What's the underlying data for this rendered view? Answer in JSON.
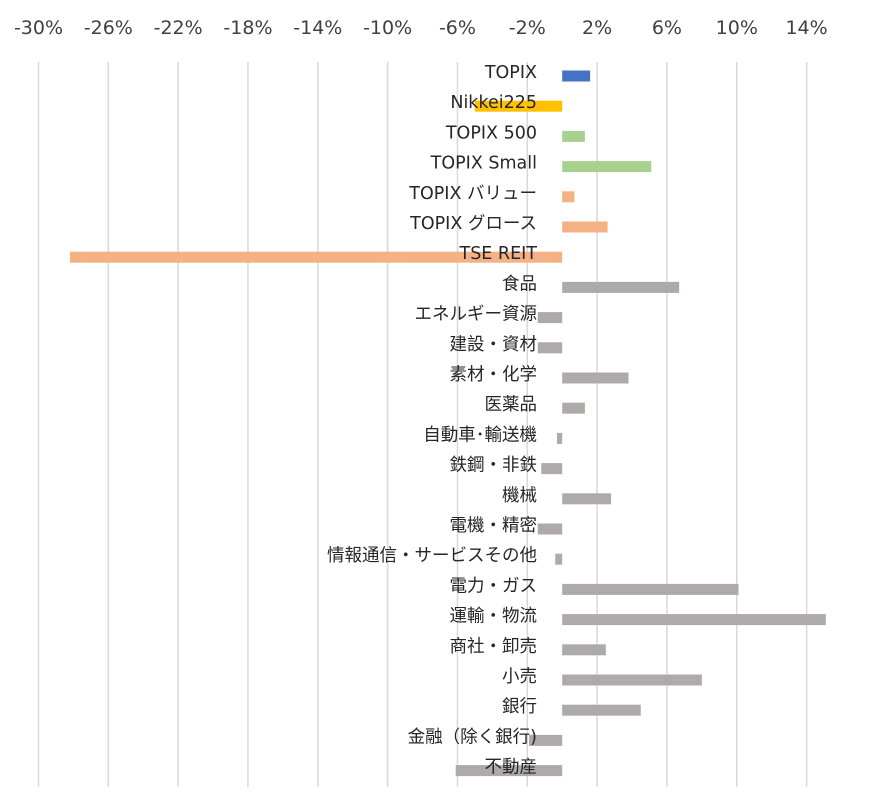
{
  "chart_data": {
    "type": "bar",
    "orientation": "horizontal",
    "title": "",
    "xlabel": "",
    "ylabel": "",
    "xlim": [
      -30,
      16
    ],
    "x_ticks": [
      -30,
      -26,
      -22,
      -18,
      -14,
      -10,
      -6,
      -2,
      2,
      6,
      10,
      14
    ],
    "x_tick_labels": [
      "-30%",
      "-26%",
      "-22%",
      "-18%",
      "-14%",
      "-10%",
      "-6%",
      "-2%",
      "2%",
      "6%",
      "10%",
      "14%"
    ],
    "x_axis_position": "top",
    "grid": true,
    "legend": "none",
    "unit": "%",
    "categories": [
      "TOPIX",
      "Nikkei225",
      "TOPIX 500",
      "TOPIX Small",
      "TOPIX バリュー",
      "TOPIX グロース",
      "TSE REIT",
      "食品",
      "エネルギー資源",
      "建設・資材",
      "素材・化学",
      "医薬品",
      "自動車･輸送機",
      "鉄鋼・非鉄",
      "機械",
      "電機・精密",
      "情報通信・サービスその他",
      "電力・ガス",
      "運輸・物流",
      "商社・卸売",
      "小売",
      "銀行",
      "金融（除く銀行)",
      "不動産"
    ],
    "values": [
      1.6,
      -5.0,
      1.3,
      5.1,
      0.7,
      2.6,
      -28.2,
      6.7,
      -1.4,
      -1.4,
      3.8,
      1.3,
      -0.3,
      -1.2,
      2.8,
      -1.4,
      -0.4,
      10.1,
      15.1,
      2.5,
      8.0,
      4.5,
      -1.9,
      -6.1
    ],
    "colors": [
      "#4472c4",
      "#ffc000",
      "#a9d18e",
      "#a9d18e",
      "#f4b183",
      "#f4b183",
      "#f4b183",
      "#aeaaaa",
      "#aeaaaa",
      "#aeaaaa",
      "#aeaaaa",
      "#aeaaaa",
      "#aeaaaa",
      "#aeaaaa",
      "#aeaaaa",
      "#aeaaaa",
      "#aeaaaa",
      "#aeaaaa",
      "#aeaaaa",
      "#aeaaaa",
      "#aeaaaa",
      "#aeaaaa",
      "#aeaaaa",
      "#aeaaaa"
    ]
  }
}
